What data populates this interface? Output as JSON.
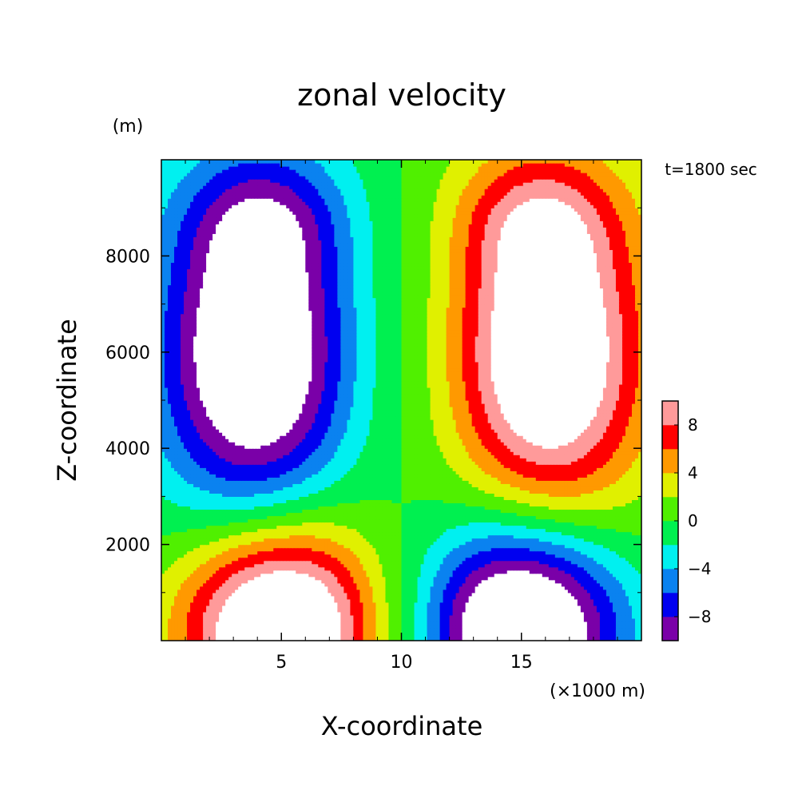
{
  "chart_data": {
    "type": "heatmap",
    "title": "zonal velocity",
    "xlabel": "X-coordinate",
    "ylabel": "Z-coordinate",
    "x_unit": "(×1000 m)",
    "y_unit": "(m)",
    "time_label": "t=1800 sec",
    "xlim": [
      0,
      20
    ],
    "ylim": [
      0,
      10000
    ],
    "x_ticks": [
      5,
      10,
      15
    ],
    "x_tick_labels": [
      "5",
      "10",
      "15"
    ],
    "y_ticks": [
      2000,
      4000,
      6000,
      8000
    ],
    "y_tick_labels": [
      "2000",
      "4000",
      "6000",
      "8000"
    ],
    "colorbar": {
      "levels": [
        -10,
        -8,
        -6,
        -4,
        -2,
        0,
        2,
        4,
        6,
        8,
        10
      ],
      "colors": [
        "#7a00a8",
        "#0000f0",
        "#0a82f0",
        "#00f0f0",
        "#00f050",
        "#50f000",
        "#e0f000",
        "#ff9900",
        "#ff0000",
        "#ff9a9a"
      ],
      "tick_labels": [
        "-8",
        "-4",
        "0",
        "4",
        "8"
      ],
      "tick_values": [
        -8,
        -4,
        0,
        4,
        8
      ],
      "below_min_color": "#ffffff",
      "above_max_color": "#ffffff"
    },
    "field_features": [
      {
        "x": 4.0,
        "z": 5300,
        "value": -11
      },
      {
        "x": 16.0,
        "z": 5300,
        "value": 11
      },
      {
        "x": 5.0,
        "z": 700,
        "value": 11
      },
      {
        "x": 15.0,
        "z": 700,
        "value": -11
      }
    ]
  }
}
